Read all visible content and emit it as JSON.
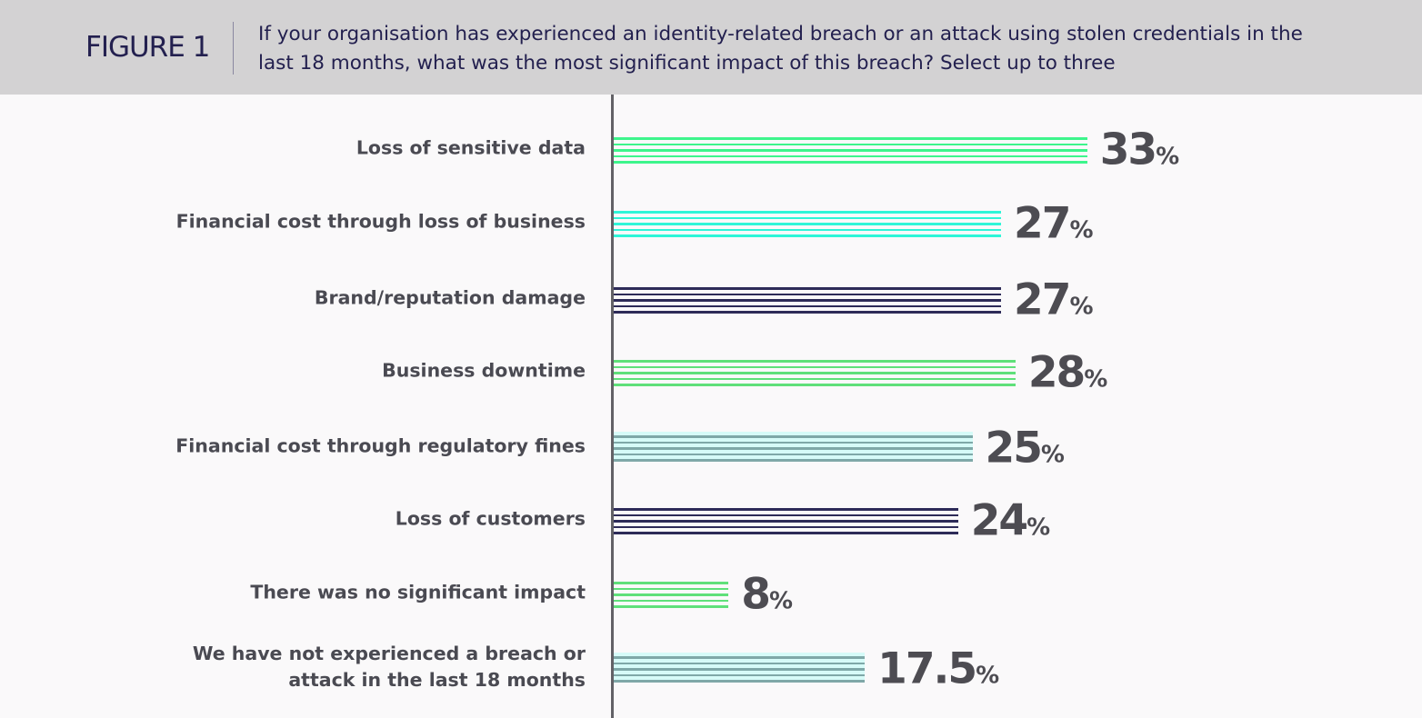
{
  "header": {
    "figure_label": "FIGURE 1",
    "question": "If your organisation has experienced an identity-related breach or an attack using stolen credentials in the last 18 months, what was the most significant impact of this breach? Select up to three"
  },
  "chart_data": {
    "type": "bar",
    "orientation": "horizontal",
    "categories": [
      "Loss of sensitive data",
      "Financial cost through loss of business",
      "Brand/reputation damage",
      "Business downtime",
      "Financial cost through regulatory fines",
      "Loss of customers",
      "There was no significant impact",
      "We have not experienced a breach or attack in the last 18 months"
    ],
    "values": [
      33,
      27,
      27,
      28,
      25,
      24,
      8,
      17.5
    ],
    "value_labels": [
      "33",
      "27",
      "27",
      "28",
      "25",
      "24",
      "8",
      "17.5"
    ],
    "unit": "%",
    "xlim": [
      0,
      35
    ],
    "grid": false,
    "bar_colors": [
      "#3df58c",
      "#2ff5d8",
      "#2d2b58",
      "#5fe07a",
      "#7fa8a8",
      "#2d2b58",
      "#5fe07a",
      "#7fa8a8"
    ],
    "bar_backgrounds": [
      "none",
      "none",
      "none",
      "none",
      "#d6fbf8",
      "none",
      "none",
      "#d6fbf8"
    ]
  }
}
